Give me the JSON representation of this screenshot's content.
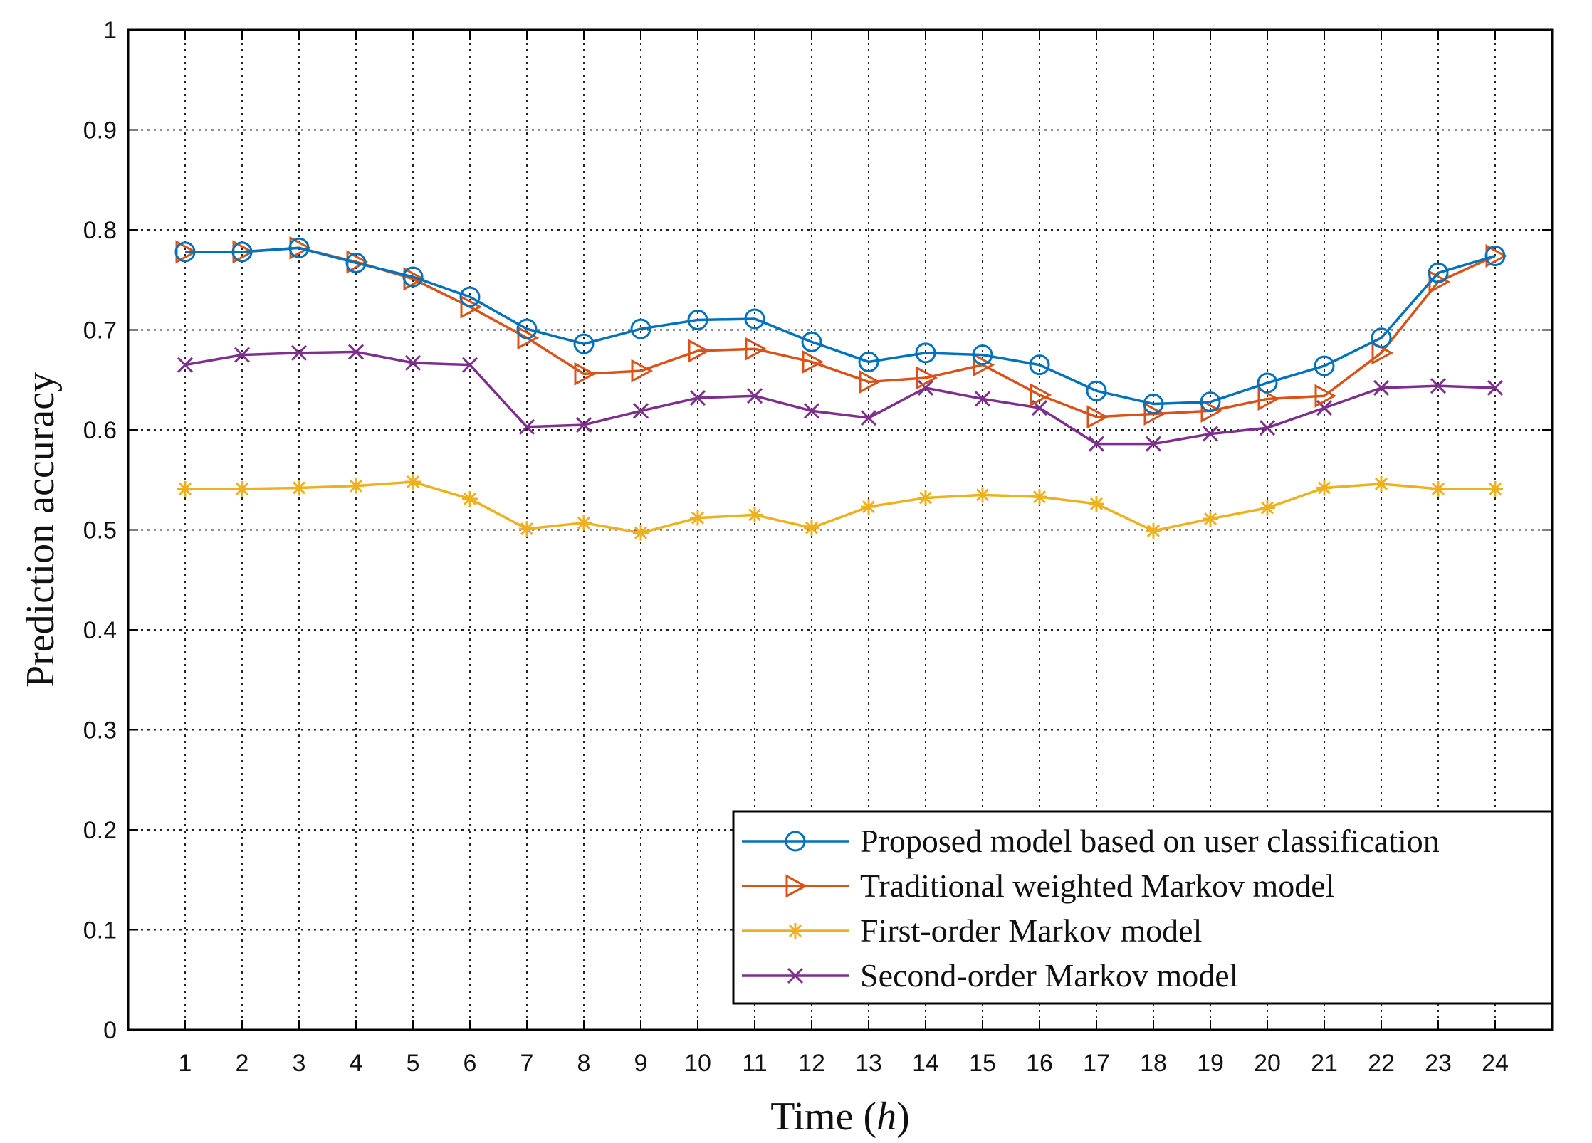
{
  "chart_data": {
    "type": "line",
    "xlabel": "Time",
    "xlabel_unit": "h",
    "ylabel": "Prediction accuracy",
    "x": [
      1,
      2,
      3,
      4,
      5,
      6,
      7,
      8,
      9,
      10,
      11,
      12,
      13,
      14,
      15,
      16,
      17,
      18,
      19,
      20,
      21,
      22,
      23,
      24
    ],
    "xlim": [
      0,
      25
    ],
    "ylim": [
      0,
      1
    ],
    "yticks": [
      0,
      0.1,
      0.2,
      0.3,
      0.4,
      0.5,
      0.6,
      0.7,
      0.8,
      0.9,
      1
    ],
    "ytick_labels": [
      "0",
      "0.1",
      "0.2",
      "0.3",
      "0.4",
      "0.5",
      "0.6",
      "0.7",
      "0.8",
      "0.9",
      "1"
    ],
    "grid": true,
    "legend_position": "bottom-right",
    "series": [
      {
        "name": "Proposed model based on user classification",
        "color": "#0072BD",
        "marker": "circle",
        "values": [
          0.778,
          0.778,
          0.782,
          0.767,
          0.753,
          0.733,
          0.701,
          0.686,
          0.701,
          0.71,
          0.711,
          0.688,
          0.668,
          0.677,
          0.675,
          0.665,
          0.639,
          0.626,
          0.628,
          0.647,
          0.664,
          0.692,
          0.757,
          0.774
        ]
      },
      {
        "name": "Traditional weighted Markov model",
        "color": "#D95319",
        "marker": "triangle-right",
        "values": [
          0.778,
          0.778,
          0.782,
          0.768,
          0.751,
          0.723,
          0.692,
          0.656,
          0.659,
          0.679,
          0.681,
          0.668,
          0.648,
          0.652,
          0.665,
          0.635,
          0.613,
          0.616,
          0.619,
          0.631,
          0.634,
          0.677,
          0.748,
          0.774
        ]
      },
      {
        "name": "First-order Markov model",
        "color": "#EDB120",
        "marker": "asterisk",
        "values": [
          0.541,
          0.541,
          0.542,
          0.544,
          0.548,
          0.531,
          0.501,
          0.507,
          0.497,
          0.512,
          0.515,
          0.502,
          0.523,
          0.532,
          0.535,
          0.533,
          0.526,
          0.499,
          0.511,
          0.522,
          0.542,
          0.546,
          0.541,
          0.541
        ]
      },
      {
        "name": "Second-order Markov model",
        "color": "#7E2F8E",
        "marker": "x",
        "values": [
          0.665,
          0.675,
          0.677,
          0.678,
          0.667,
          0.665,
          0.603,
          0.605,
          0.619,
          0.632,
          0.634,
          0.619,
          0.612,
          0.642,
          0.631,
          0.622,
          0.586,
          0.586,
          0.596,
          0.602,
          0.622,
          0.642,
          0.644,
          0.642
        ]
      }
    ]
  }
}
